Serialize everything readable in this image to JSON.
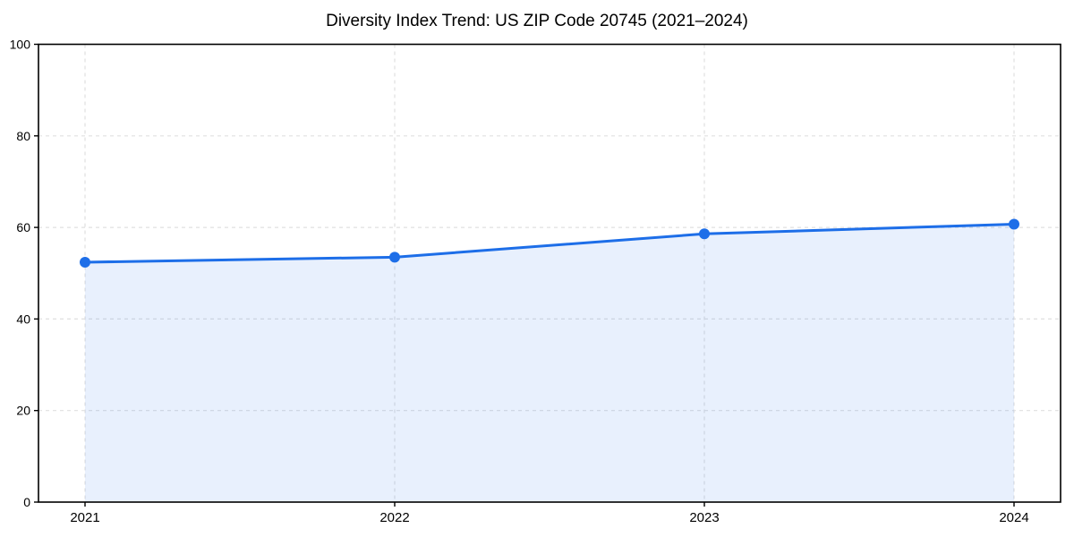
{
  "figure": {
    "background": "#ffffff"
  },
  "chart_data": {
    "type": "line",
    "title": "Diversity Index Trend: US ZIP Code 20745 (2021–2024)",
    "categories": [
      "2021",
      "2022",
      "2023",
      "2024"
    ],
    "series": [
      {
        "name": "Diversity Index",
        "values": [
          52.4,
          53.5,
          58.6,
          60.7
        ]
      }
    ],
    "xlabel": "",
    "ylabel": "",
    "ylim": [
      0,
      100
    ],
    "yticks": [
      0,
      20,
      40,
      60,
      80,
      100
    ],
    "grid": true,
    "grid_style": "dashed",
    "legend": "none",
    "area_fill": true,
    "fill_opacity": 0.1,
    "marker": "circle",
    "colors": {
      "line": "#1d6ee8",
      "marker": "#1d6ee8",
      "fill": "#1d6ee8",
      "grid": "#e0e0e0",
      "axis": "#000000",
      "text": "#000000"
    }
  }
}
